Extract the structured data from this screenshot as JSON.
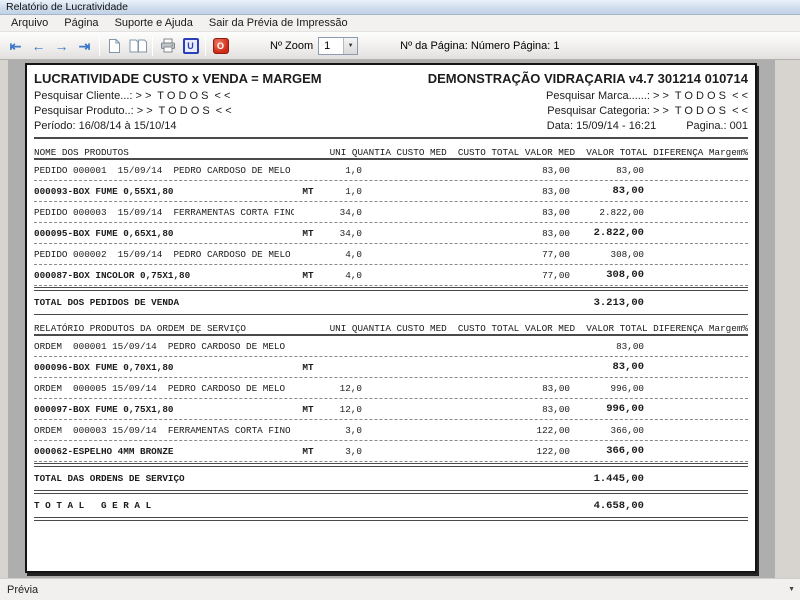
{
  "window": {
    "title": "Relatório de Lucratividade"
  },
  "menubar": {
    "items": [
      {
        "label": "Arquivo"
      },
      {
        "label": "Página"
      },
      {
        "label": "Suporte e Ajuda"
      },
      {
        "label": "Sair da Prévia de Impressão"
      }
    ]
  },
  "toolbar": {
    "zoom_label": "Nº Zoom",
    "zoom_value": "1",
    "page_info": "Nº da Página: Número Página: 1",
    "icons": {
      "first": "⇤",
      "previous": "←",
      "next": "→",
      "last": "⇥",
      "logo_letter": "U",
      "power_letter": "O",
      "combo_arrow": "▼"
    }
  },
  "statusbar": {
    "text": "Prévia",
    "arrow": "▼"
  },
  "report": {
    "title_left": "LUCRATIVIDADE CUSTO x VENDA = MARGEM",
    "title_right": "DEMONSTRAÇÃO VIDRAÇARIA v4.7 301214 010714",
    "filter_cliente": "Pesquisar Cliente...: > >  T O D O S  < <",
    "filter_marca": "Pesquisar Marca......: > >  T O D O S  < <",
    "filter_produto": "Pesquisar Produto..: > >  T O D O S  < <",
    "filter_categoria": "Pesquisar Categoria: > >  T O D O S  < <",
    "periodo": "Período: 16/08/14 à 15/10/14",
    "data_hora": "Data: 15/09/14 - 16:21",
    "pagina": "Pagina.: 001",
    "columns": [
      "UNI",
      "QUANTIA",
      "CUSTO MED",
      "CUSTO TOTAL",
      "VALOR MED",
      "VALOR TOTAL",
      "DIFERENÇA",
      "Margem%"
    ],
    "sections": [
      {
        "header": "NOME DOS PRODUTOS",
        "rows": [
          {
            "name": "PEDIDO 000001  15/09/14  PEDRO CARDOSO DE MELO",
            "uni": "",
            "quantia": "1,0",
            "custo_med": "",
            "custo_total": "",
            "valor_med": "83,00",
            "valor_total": "83,00",
            "diferenca": "",
            "margem": "",
            "bold": false
          },
          {
            "name": "000093-BOX FUME 0,55X1,80",
            "uni": "MT",
            "quantia": "1,0",
            "custo_med": "",
            "custo_total": "",
            "valor_med": "83,00",
            "valor_total": "83,00",
            "diferenca": "",
            "margem": "",
            "bold": true
          },
          {
            "name": "PEDIDO 000003  15/09/14  FERRAMENTAS CORTA FINO",
            "uni": "",
            "quantia": "34,0",
            "custo_med": "",
            "custo_total": "",
            "valor_med": "83,00",
            "valor_total": "2.822,00",
            "diferenca": "",
            "margem": "",
            "bold": false
          },
          {
            "name": "000095-BOX FUME 0,65X1,80",
            "uni": "MT",
            "quantia": "34,0",
            "custo_med": "",
            "custo_total": "",
            "valor_med": "83,00",
            "valor_total": "2.822,00",
            "diferenca": "",
            "margem": "",
            "bold": true
          },
          {
            "name": "PEDIDO 000002  15/09/14  PEDRO CARDOSO DE MELO",
            "uni": "",
            "quantia": "4,0",
            "custo_med": "",
            "custo_total": "",
            "valor_med": "77,00",
            "valor_total": "308,00",
            "diferenca": "",
            "margem": "",
            "bold": false
          },
          {
            "name": "000087-BOX INCOLOR 0,75X1,80",
            "uni": "MT",
            "quantia": "4,0",
            "custo_med": "",
            "custo_total": "",
            "valor_med": "77,00",
            "valor_total": "308,00",
            "diferenca": "",
            "margem": "",
            "bold": true
          }
        ],
        "total_label": "TOTAL DOS PEDIDOS DE VENDA",
        "total_value": "3.213,00"
      },
      {
        "header": "RELATÓRIO PRODUTOS DA ORDEM DE SERVIÇO",
        "rows": [
          {
            "name": "ORDEM  000001 15/09/14  PEDRO CARDOSO DE MELO",
            "uni": "",
            "quantia": "",
            "custo_med": "",
            "custo_total": "",
            "valor_med": "",
            "valor_total": "83,00",
            "diferenca": "",
            "margem": "",
            "bold": false
          },
          {
            "name": "000096-BOX FUME 0,70X1,80",
            "uni": "MT",
            "quantia": "",
            "custo_med": "",
            "custo_total": "",
            "valor_med": "",
            "valor_total": "83,00",
            "diferenca": "",
            "margem": "",
            "bold": true
          },
          {
            "name": "ORDEM  000005 15/09/14  PEDRO CARDOSO DE MELO",
            "uni": "",
            "quantia": "12,0",
            "custo_med": "",
            "custo_total": "",
            "valor_med": "83,00",
            "valor_total": "996,00",
            "diferenca": "",
            "margem": "",
            "bold": false
          },
          {
            "name": "000097-BOX FUME 0,75X1,80",
            "uni": "MT",
            "quantia": "12,0",
            "custo_med": "",
            "custo_total": "",
            "valor_med": "83,00",
            "valor_total": "996,00",
            "diferenca": "",
            "margem": "",
            "bold": true
          },
          {
            "name": "ORDEM  000003 15/09/14  FERRAMENTAS CORTA FINO",
            "uni": "",
            "quantia": "3,0",
            "custo_med": "",
            "custo_total": "",
            "valor_med": "122,00",
            "valor_total": "366,00",
            "diferenca": "",
            "margem": "",
            "bold": false
          },
          {
            "name": "000062-ESPELHO 4MM BRONZE",
            "uni": "MT",
            "quantia": "3,0",
            "custo_med": "",
            "custo_total": "",
            "valor_med": "122,00",
            "valor_total": "366,00",
            "diferenca": "",
            "margem": "",
            "bold": true
          }
        ],
        "total_label": "TOTAL DAS ORDENS DE SERVIÇO",
        "total_value": "1.445,00"
      }
    ],
    "grand_total_label": "T O T A L   G E R A L",
    "grand_total_value": "4.658,00"
  }
}
